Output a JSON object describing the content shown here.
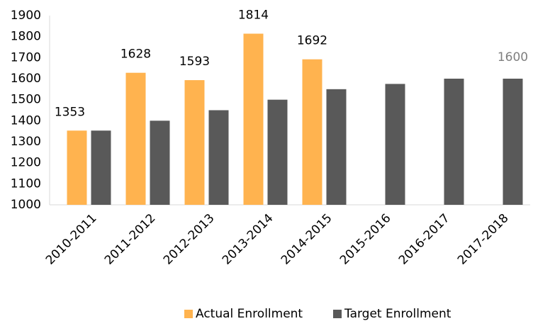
{
  "chart_data": {
    "type": "bar",
    "categories": [
      "2010-2011",
      "2011-2012",
      "2012-2013",
      "2013-2014",
      "2014-2015",
      "2015-2016",
      "2016-2017",
      "2017-2018"
    ],
    "series": [
      {
        "name": "Actual Enrollment",
        "color": "#ffb34f",
        "values": [
          1353,
          1628,
          1593,
          1814,
          1692,
          null,
          null,
          null
        ],
        "data_labels": true
      },
      {
        "name": "Target Enrollment",
        "color": "#595959",
        "values": [
          1353,
          1400,
          1450,
          1500,
          1550,
          1575,
          1600,
          1600
        ],
        "value_labels": [
          null,
          null,
          null,
          null,
          null,
          null,
          null,
          "1600"
        ],
        "label_color": "#7f7f7f"
      }
    ],
    "ylim": [
      1000,
      1900
    ],
    "yticks": [
      1000,
      1100,
      1200,
      1300,
      1400,
      1500,
      1600,
      1700,
      1800,
      1900
    ],
    "grid": false,
    "legend": "bottom"
  }
}
